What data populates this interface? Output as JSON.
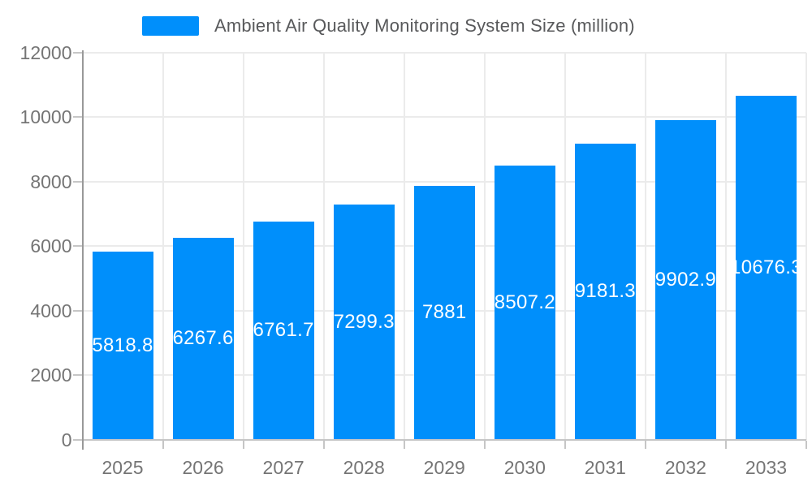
{
  "chart_data": {
    "type": "bar",
    "legend": "Ambient Air Quality Monitoring System Size (million)",
    "legend_position": "top",
    "categories": [
      "2025",
      "2026",
      "2027",
      "2028",
      "2029",
      "2030",
      "2031",
      "2032",
      "2033"
    ],
    "series": [
      {
        "name": "Ambient Air Quality Monitoring System Size (million)",
        "values": [
          5818.8,
          6267.6,
          6761.7,
          7299.3,
          7881,
          8507.2,
          9181.3,
          9902.9,
          10676.3
        ],
        "value_labels": [
          "5818.8",
          "6267.6",
          "6761.7",
          "7299.3",
          "7881",
          "8507.2",
          "9181.3",
          "9902.9",
          "10676.3"
        ]
      }
    ],
    "xlabel": "",
    "ylabel": "",
    "ylim": [
      0,
      12000
    ],
    "y_ticks": [
      0,
      2000,
      4000,
      6000,
      8000,
      10000,
      12000
    ],
    "y_tick_labels": [
      "0",
      "2000",
      "4000",
      "6000",
      "8000",
      "10000",
      "12000"
    ],
    "grid": true,
    "data_labels": "inside-center",
    "colors": {
      "bar": "#008FFB",
      "bar_label_text": "#FFFFFF",
      "axis_label_text": "#757575",
      "legend_text": "#58595B",
      "gridline": "#EBEBEB",
      "axis_line": "#999999",
      "tick": "#C6C6C6",
      "background": "#FFFFFF"
    }
  }
}
